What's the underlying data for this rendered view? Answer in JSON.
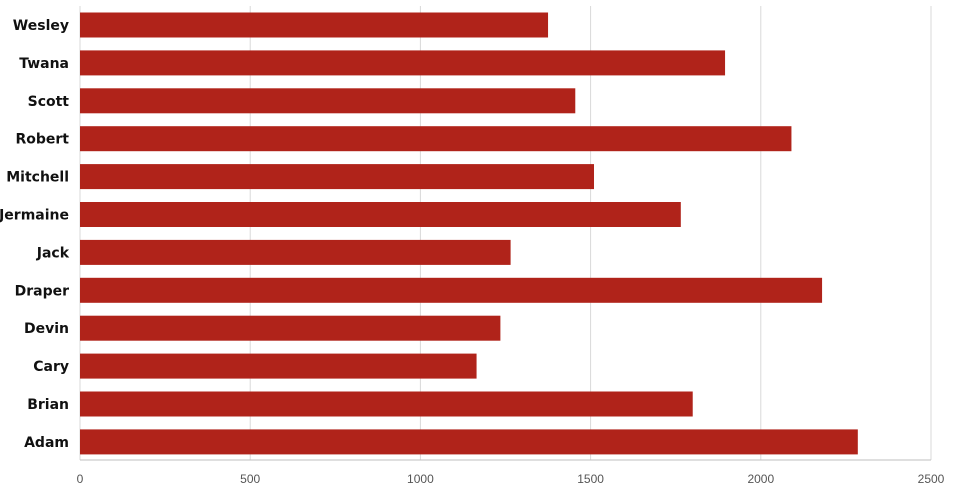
{
  "chart_data": {
    "type": "bar",
    "orientation": "horizontal",
    "categories": [
      "Wesley",
      "Twana",
      "Scott",
      "Robert",
      "Mitchell",
      "Jermaine",
      "Jack",
      "Draper",
      "Devin",
      "Cary",
      "Brian",
      "Adam"
    ],
    "values": [
      1375,
      1895,
      1455,
      2090,
      1510,
      1765,
      1265,
      2180,
      1235,
      1165,
      1800,
      2285
    ],
    "xlim": [
      0,
      2500
    ],
    "xticks": [
      "0",
      "500",
      "1000",
      "1500",
      "2000",
      "2500"
    ],
    "grid": true,
    "bar_color": "#b0231a"
  }
}
